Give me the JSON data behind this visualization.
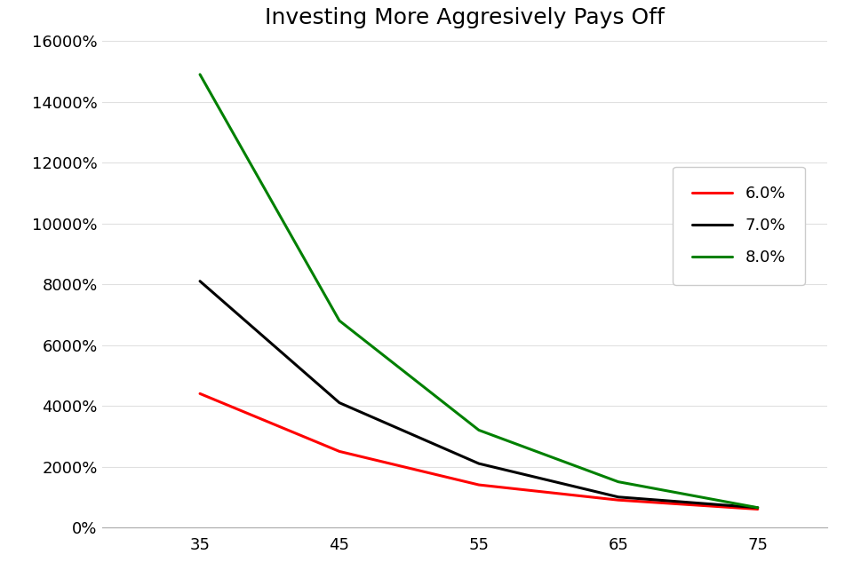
{
  "title": "Investing More Aggresively Pays Off",
  "x": [
    35,
    45,
    55,
    65,
    75
  ],
  "series": [
    {
      "label": "6.0%",
      "color": "#FF0000",
      "values": [
        4400,
        2500,
        1400,
        900,
        600
      ]
    },
    {
      "label": "7.0%",
      "color": "#000000",
      "values": [
        8100,
        4100,
        2100,
        1000,
        650
      ]
    },
    {
      "label": "8.0%",
      "color": "#008000",
      "values": [
        14900,
        6800,
        3200,
        1500,
        650
      ]
    }
  ],
  "ylim": [
    0,
    16000
  ],
  "yticks": [
    0,
    2000,
    4000,
    6000,
    8000,
    10000,
    12000,
    14000,
    16000
  ],
  "xticks": [
    35,
    45,
    55,
    65,
    75
  ],
  "xlim": [
    28,
    80
  ],
  "background_color": "#FFFFFF",
  "title_fontsize": 18,
  "legend_loc": "center right",
  "linewidth": 2.2,
  "grid_color": "#E0E0E0",
  "spine_color": "#AAAAAA",
  "tick_labelsize": 13
}
